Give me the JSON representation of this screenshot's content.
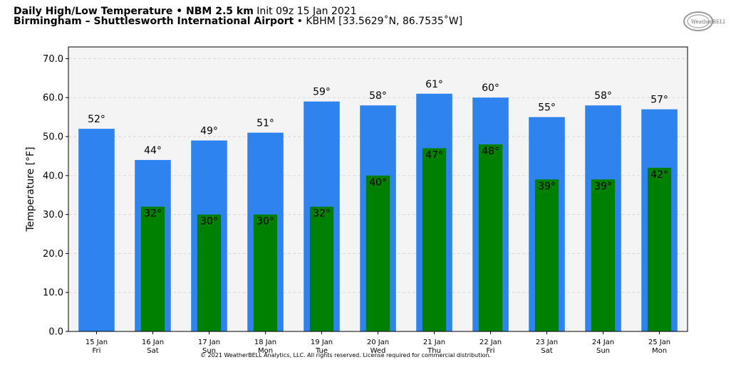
{
  "header": {
    "line1_bold": "Daily High/Low Temperature • NBM 2.5 km",
    "line1_normal": "Init 09z 15 Jan 2021",
    "line2_bold": "Birmingham – Shuttlesworth International Airport",
    "line2_normal": "• KBHM [33.5629˚N, 86.7535˚W]"
  },
  "logo": {
    "text": "WeatherBELL",
    "icon": "weatherbell-logo"
  },
  "footer": "© 2021 WeatherBELL Analytics, LLC. All rights reserved. License required for commercial distribution.",
  "colors": {
    "high": "#2e83ee",
    "low": "#008000",
    "plot_bg": "#f4f4f4",
    "grid": "#d9d9d9"
  },
  "chart_data": {
    "type": "bar",
    "ylabel": "Temperature [°F]",
    "ylim": [
      0,
      73
    ],
    "yticks": [
      "0.0",
      "10.0",
      "20.0",
      "30.0",
      "40.0",
      "50.0",
      "60.0",
      "70.0"
    ],
    "ytick_values": [
      0,
      10,
      20,
      30,
      40,
      50,
      60,
      70
    ],
    "grid": true,
    "categories": [
      "15 Jan",
      "16 Jan",
      "17 Jan",
      "18 Jan",
      "19 Jan",
      "20 Jan",
      "21 Jan",
      "22 Jan",
      "23 Jan",
      "24 Jan",
      "25 Jan"
    ],
    "weekdays": [
      "Fri",
      "Sat",
      "Sun",
      "Mon",
      "Tue",
      "Wed",
      "Thu",
      "Fri",
      "Sat",
      "Sun",
      "Mon"
    ],
    "series": [
      {
        "values": [
          52,
          44,
          49,
          51,
          59,
          58,
          61,
          60,
          55,
          58,
          57
        ],
        "labels": [
          "52°",
          "44°",
          "49°",
          "51°",
          "59°",
          "58°",
          "61°",
          "60°",
          "55°",
          "58°",
          "57°"
        ]
      },
      {
        "values": [
          null,
          32,
          30,
          30,
          32,
          40,
          47,
          48,
          39,
          39,
          42
        ],
        "labels": [
          "",
          "32°",
          "30°",
          "30°",
          "32°",
          "40°",
          "47°",
          "48°",
          "39°",
          "39°",
          "42°"
        ]
      }
    ]
  }
}
